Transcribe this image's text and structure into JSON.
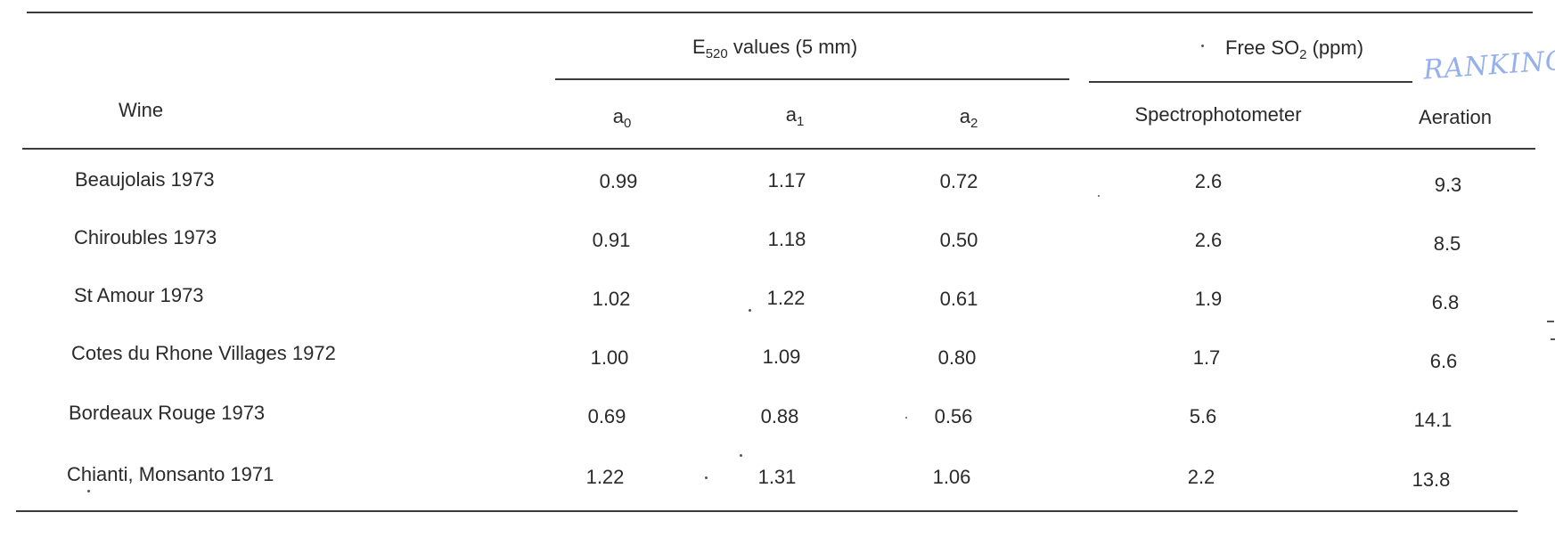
{
  "table": {
    "header": {
      "wine": "Wine",
      "e520": {
        "prefix": "E",
        "sub": "520",
        "suffix": " values (5 mm)"
      },
      "so2": {
        "prefix": "Free  SO",
        "sub": "2",
        "suffix": " (ppm)"
      },
      "a0": {
        "letter": "a",
        "sub": "0"
      },
      "a1": {
        "letter": "a",
        "sub": "1"
      },
      "a2": {
        "letter": "a",
        "sub": "2"
      },
      "spectro": "Spectrophotometer",
      "aeration": "Aeration"
    },
    "rows": [
      {
        "wine": "Beaujolais  1973",
        "a0": "0.99",
        "a1": "1.17",
        "a2": "0.72",
        "spectro": "2.6",
        "aeration": "9.3"
      },
      {
        "wine": "Chiroubles  1973",
        "a0": "0.91",
        "a1": "1.18",
        "a2": "0.50",
        "spectro": "2.6",
        "aeration": "8.5"
      },
      {
        "wine": "St Amour 1973",
        "a0": "1.02",
        "a1": "1.22",
        "a2": "0.61",
        "spectro": "1.9",
        "aeration": "6.8"
      },
      {
        "wine": "Cotes du Rhone Villages 1972",
        "a0": "1.00",
        "a1": "1.09",
        "a2": "0.80",
        "spectro": "1.7",
        "aeration": "6.6"
      },
      {
        "wine": "Bordeaux Rouge 1973",
        "a0": "0.69",
        "a1": "0.88",
        "a2": "0.56",
        "spectro": "5.6",
        "aeration": "14.1"
      },
      {
        "wine": "Chianti, Monsanto 1971",
        "a0": "1.22",
        "a1": "1.31",
        "a2": "1.06",
        "spectro": "2.2",
        "aeration": "13.8"
      }
    ]
  },
  "annotation": "RANKING"
}
